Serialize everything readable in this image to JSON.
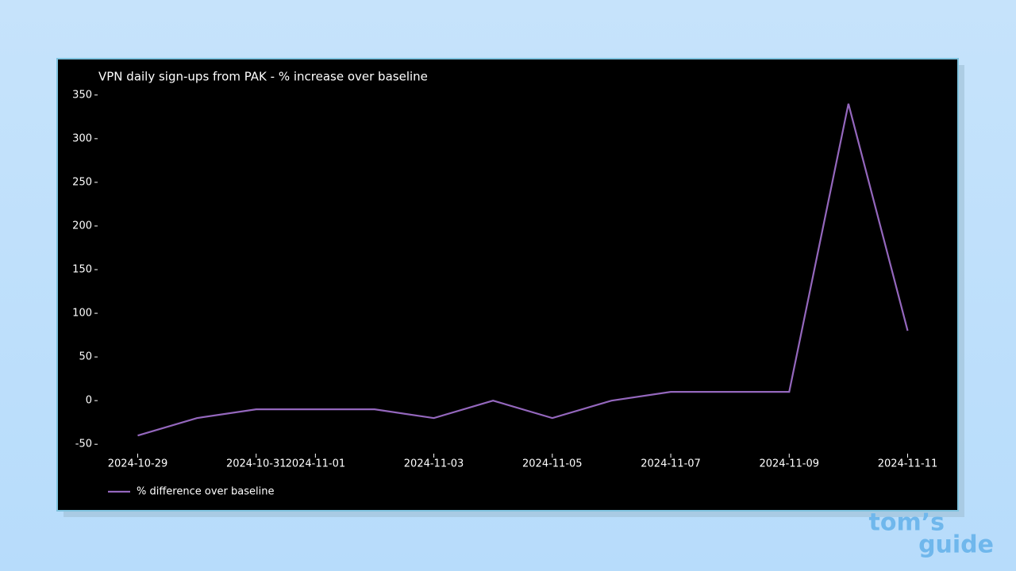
{
  "chart_data": {
    "type": "line",
    "title": "VPN daily sign-ups from PAK - % increase over baseline",
    "x": [
      "2024-10-29",
      "2024-10-30",
      "2024-10-31",
      "2024-11-01",
      "2024-11-02",
      "2024-11-03",
      "2024-11-04",
      "2024-11-05",
      "2024-11-06",
      "2024-11-07",
      "2024-11-08",
      "2024-11-09",
      "2024-11-10",
      "2024-11-11"
    ],
    "series": [
      {
        "name": "% difference over baseline",
        "color": "#9467bd",
        "values": [
          -40,
          -20,
          -10,
          -10,
          -10,
          -20,
          0,
          -20,
          0,
          10,
          10,
          10,
          340,
          80
        ]
      }
    ],
    "xticks": [
      "2024-10-29",
      "2024-10-31",
      "2024-11-01",
      "2024-11-03",
      "2024-11-05",
      "2024-11-07",
      "2024-11-09",
      "2024-11-11"
    ],
    "ylim": [
      -58,
      358
    ],
    "yticks": [
      -50,
      0,
      50,
      100,
      150,
      200,
      250,
      300,
      350
    ],
    "legend": "lower left",
    "grid": false
  },
  "watermark": [
    "tom’s",
    "guide"
  ]
}
